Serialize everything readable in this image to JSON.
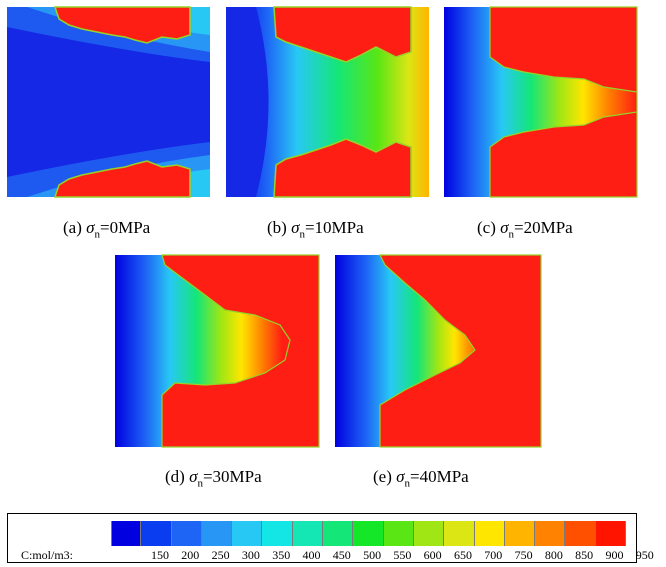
{
  "panels": [
    {
      "id": "a",
      "label": "(a) ",
      "symbol": "σ",
      "sub": "n",
      "value": "=0MPa"
    },
    {
      "id": "b",
      "label": "(b) ",
      "symbol": "σ",
      "sub": "n",
      "value": "=10MPa"
    },
    {
      "id": "c",
      "label": "(c) ",
      "symbol": "σ",
      "sub": "n",
      "value": "=20MPa"
    },
    {
      "id": "d",
      "label": "(d) ",
      "symbol": "σ",
      "sub": "n",
      "value": "=30MPa"
    },
    {
      "id": "e",
      "label": "(e) ",
      "symbol": "σ",
      "sub": "n",
      "value": "=40MPa"
    }
  ],
  "legend": {
    "title": "C:mol/m3:",
    "ticks": [
      "150",
      "200",
      "250",
      "300",
      "350",
      "400",
      "450",
      "500",
      "550",
      "600",
      "650",
      "700",
      "750",
      "800",
      "850",
      "900",
      "950"
    ],
    "colors": [
      "#0000e0",
      "#0a3cf0",
      "#1e64f5",
      "#2896f5",
      "#28c8f5",
      "#14e6e6",
      "#14e6b4",
      "#14e678",
      "#14e628",
      "#5ae614",
      "#a0e614",
      "#dce614",
      "#ffe600",
      "#ffb400",
      "#ff8200",
      "#ff5000",
      "#ff1400"
    ]
  },
  "contour_palette": {
    "blue": "#1428e6",
    "red": "#ff1e14",
    "edge": "#96d228"
  }
}
